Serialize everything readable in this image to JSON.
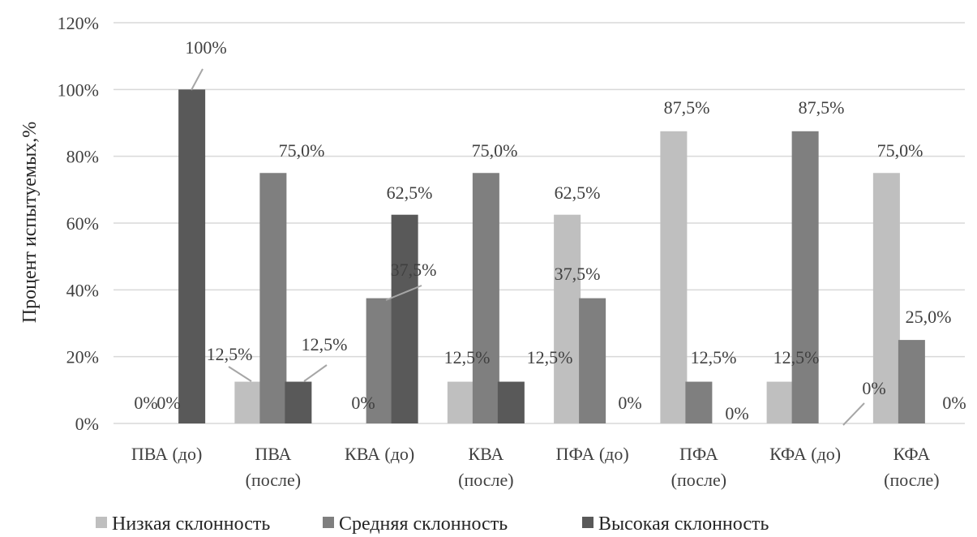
{
  "chart_data": {
    "type": "bar",
    "ylabel": "Процент испытуемых,%",
    "ylim": [
      0,
      1.2
    ],
    "yticks": [
      "0%",
      "20%",
      "40%",
      "60%",
      "80%",
      "100%",
      "120%"
    ],
    "grid": true,
    "legend_position": "bottom",
    "categories": [
      [
        "ПВА (до)"
      ],
      [
        "ПВА",
        "(после)"
      ],
      [
        "КВА (до)"
      ],
      [
        "КВА",
        "(после)"
      ],
      [
        "ПФА (до)"
      ],
      [
        "ПФА",
        "(после)"
      ],
      [
        "КФА (до)"
      ],
      [
        "КФА",
        "(после)"
      ]
    ],
    "series": [
      {
        "name": "Низкая склонность",
        "color": "#bfbfbf",
        "values": [
          0,
          0.125,
          0,
          0.125,
          0.625,
          0.875,
          0.125,
          0.75
        ],
        "labels": [
          "0%",
          "12,5%",
          "0%",
          "12,5%",
          "62,5%",
          "87,5%",
          "12,5%",
          "75,0%"
        ]
      },
      {
        "name": "Средняя склонность",
        "color": "#7f7f7f",
        "values": [
          0,
          0.75,
          0.375,
          0.75,
          0.375,
          0.125,
          0.875,
          0.25
        ],
        "labels": [
          "0%",
          "75,0%",
          "37,5%",
          "75,0%",
          "37,5%",
          "12,5%",
          "87,5%",
          "25,0%"
        ]
      },
      {
        "name": "Высокая склонность",
        "color": "#595959",
        "values": [
          1.0,
          0.125,
          0.625,
          0.125,
          0,
          0,
          0,
          0
        ],
        "labels": [
          "100%",
          "12,5%",
          "62,5%",
          "12,5%",
          "0%",
          "0%",
          "0%",
          "0%"
        ]
      }
    ]
  }
}
